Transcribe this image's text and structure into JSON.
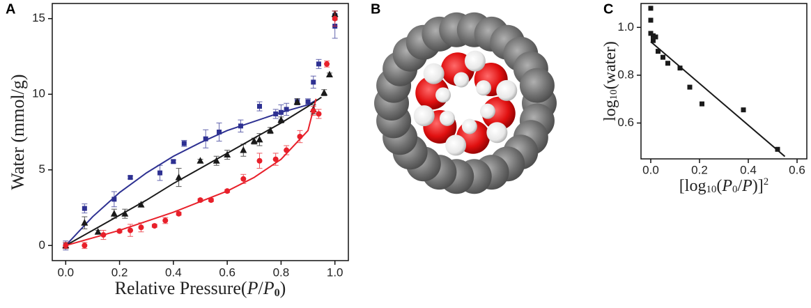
{
  "panel_b": {
    "label": "B"
  },
  "chart_data": [
    {
      "type": "scatter",
      "panel_label": "A",
      "x_label": [
        "Relative Pressure(",
        "P",
        "/",
        "P",
        "0",
        ")"
      ],
      "y_label": "Water (mmol/g)",
      "xlim": [
        -0.05,
        1.05
      ],
      "ylim": [
        -1,
        16
      ],
      "xticks": [
        {
          "value": 0,
          "label": "0.0"
        },
        {
          "value": 0.2,
          "label": "0.2"
        },
        {
          "value": 0.4,
          "label": "0.4"
        },
        {
          "value": 0.6,
          "label": "0.6"
        },
        {
          "value": 0.8,
          "label": "0.8"
        },
        {
          "value": 1,
          "label": "1.0"
        }
      ],
      "yticks": [
        0,
        5,
        10,
        15
      ],
      "series": [
        {
          "color": "#2e3192",
          "marker": "square",
          "x": [
            0,
            0.07,
            0.18,
            0.24,
            0.35,
            0.4,
            0.44,
            0.52,
            0.57,
            0.65,
            0.72,
            0.78,
            0.8,
            0.82,
            0.86,
            0.9,
            0.92,
            0.94,
            1.0,
            1.0
          ],
          "values": [
            0,
            2.45,
            3.06,
            4.5,
            4.8,
            5.55,
            6.75,
            7.05,
            7.5,
            7.9,
            9.2,
            8.7,
            8.8,
            9.0,
            9.5,
            9.5,
            10.8,
            12.0,
            14.5,
            15.2
          ],
          "errors": [
            0.3,
            0.3,
            0.5,
            0.1,
            0.5,
            0.1,
            0.2,
            0.6,
            0.6,
            0.4,
            0.3,
            0.3,
            0.5,
            0.4,
            0.2,
            0.2,
            0.4,
            0.3,
            0.8,
            0.3
          ]
        },
        {
          "color": "#1a1a1a",
          "marker": "triangle",
          "x": [
            0,
            0.07,
            0.12,
            0.18,
            0.22,
            0.28,
            0.42,
            0.5,
            0.56,
            0.6,
            0.66,
            0.7,
            0.72,
            0.76,
            0.8,
            0.86,
            0.92,
            0.96,
            0.98,
            1.0
          ],
          "values": [
            0,
            1.5,
            0.9,
            2.1,
            2.1,
            2.7,
            4.5,
            5.6,
            5.6,
            6.0,
            6.3,
            6.9,
            7.0,
            7.6,
            8.3,
            9.5,
            9.0,
            10.1,
            11.3,
            15.3
          ],
          "errors": [
            0.2,
            0.4,
            0.1,
            0.3,
            0.3,
            0.1,
            0.6,
            0.1,
            0.3,
            0.3,
            0.4,
            0.2,
            0.4,
            0.2,
            0.2,
            0.2,
            0.3,
            0.2,
            0.1,
            0.2
          ]
        },
        {
          "color": "#e8202a",
          "marker": "circle",
          "x": [
            0,
            0.07,
            0.14,
            0.2,
            0.24,
            0.28,
            0.33,
            0.37,
            0.42,
            0.5,
            0.54,
            0.6,
            0.66,
            0.72,
            0.78,
            0.82,
            0.87,
            0.92,
            0.94,
            0.97,
            1.0
          ],
          "values": [
            0,
            0,
            0.7,
            0.95,
            1.0,
            1.2,
            1.3,
            1.65,
            2.1,
            3.0,
            3.0,
            3.6,
            4.4,
            5.6,
            5.7,
            6.3,
            7.2,
            8.9,
            8.7,
            12.0,
            15.0
          ],
          "errors": [
            0.2,
            0.2,
            0.3,
            0.1,
            0.4,
            0.3,
            0.1,
            0.2,
            0.1,
            0.1,
            0.1,
            0.1,
            0.3,
            0.5,
            0.4,
            0.3,
            0.4,
            0.3,
            0.3,
            0.2,
            0.5
          ]
        }
      ],
      "fits": [
        {
          "color": "#2e3192",
          "x": [
            0,
            0.1,
            0.2,
            0.3,
            0.4,
            0.5,
            0.6,
            0.7,
            0.8,
            0.9,
            0.93
          ],
          "values": [
            0,
            1.9,
            3.5,
            4.8,
            5.9,
            6.8,
            7.6,
            8.2,
            8.8,
            9.3,
            9.6
          ]
        },
        {
          "color": "#1a1a1a",
          "x": [
            0,
            0.1,
            0.2,
            0.3,
            0.4,
            0.5,
            0.6,
            0.7,
            0.8,
            0.9,
            0.95
          ],
          "values": [
            0,
            1.0,
            2.0,
            3.0,
            4.1,
            5.1,
            6.1,
            7.1,
            8.1,
            9.2,
            9.8
          ]
        },
        {
          "color": "#e8202a",
          "x": [
            0,
            0.1,
            0.2,
            0.3,
            0.4,
            0.5,
            0.6,
            0.7,
            0.8,
            0.9,
            0.93
          ],
          "values": [
            0,
            0.5,
            1.0,
            1.6,
            2.2,
            2.9,
            3.6,
            4.5,
            5.7,
            7.6,
            9.7
          ]
        }
      ]
    },
    {
      "type": "scatter",
      "panel_label": "C",
      "x_label": [
        "[log",
        "10",
        "(",
        "P",
        "0",
        "/",
        "P",
        ")]",
        "2"
      ],
      "y_label": [
        "log",
        "10",
        "(water)"
      ],
      "xlim": [
        -0.04,
        0.64
      ],
      "ylim": [
        0.45,
        1.1
      ],
      "xticks": [
        {
          "value": 0,
          "label": "0.0"
        },
        {
          "value": 0.2,
          "label": "0.2"
        },
        {
          "value": 0.4,
          "label": "0.4"
        },
        {
          "value": 0.6,
          "label": "0.6"
        }
      ],
      "yticks": [
        {
          "value": 0.6,
          "label": "0.6"
        },
        {
          "value": 0.8,
          "label": "0.8"
        },
        {
          "value": 1,
          "label": "1.0"
        }
      ],
      "series": [
        {
          "color": "#1a1a1a",
          "marker": "square",
          "x": [
            0,
            0,
            0,
            0.01,
            0.01,
            0.02,
            0.03,
            0.05,
            0.07,
            0.12,
            0.16,
            0.21,
            0.38,
            0.52
          ],
          "values": [
            1.08,
            1.03,
            0.975,
            0.965,
            0.945,
            0.96,
            0.9,
            0.875,
            0.85,
            0.83,
            0.75,
            0.68,
            0.655,
            0.49
          ]
        }
      ],
      "fits": [
        {
          "color": "#1a1a1a",
          "x": [
            0,
            0.55
          ],
          "values": [
            0.94,
            0.46
          ]
        }
      ]
    }
  ]
}
